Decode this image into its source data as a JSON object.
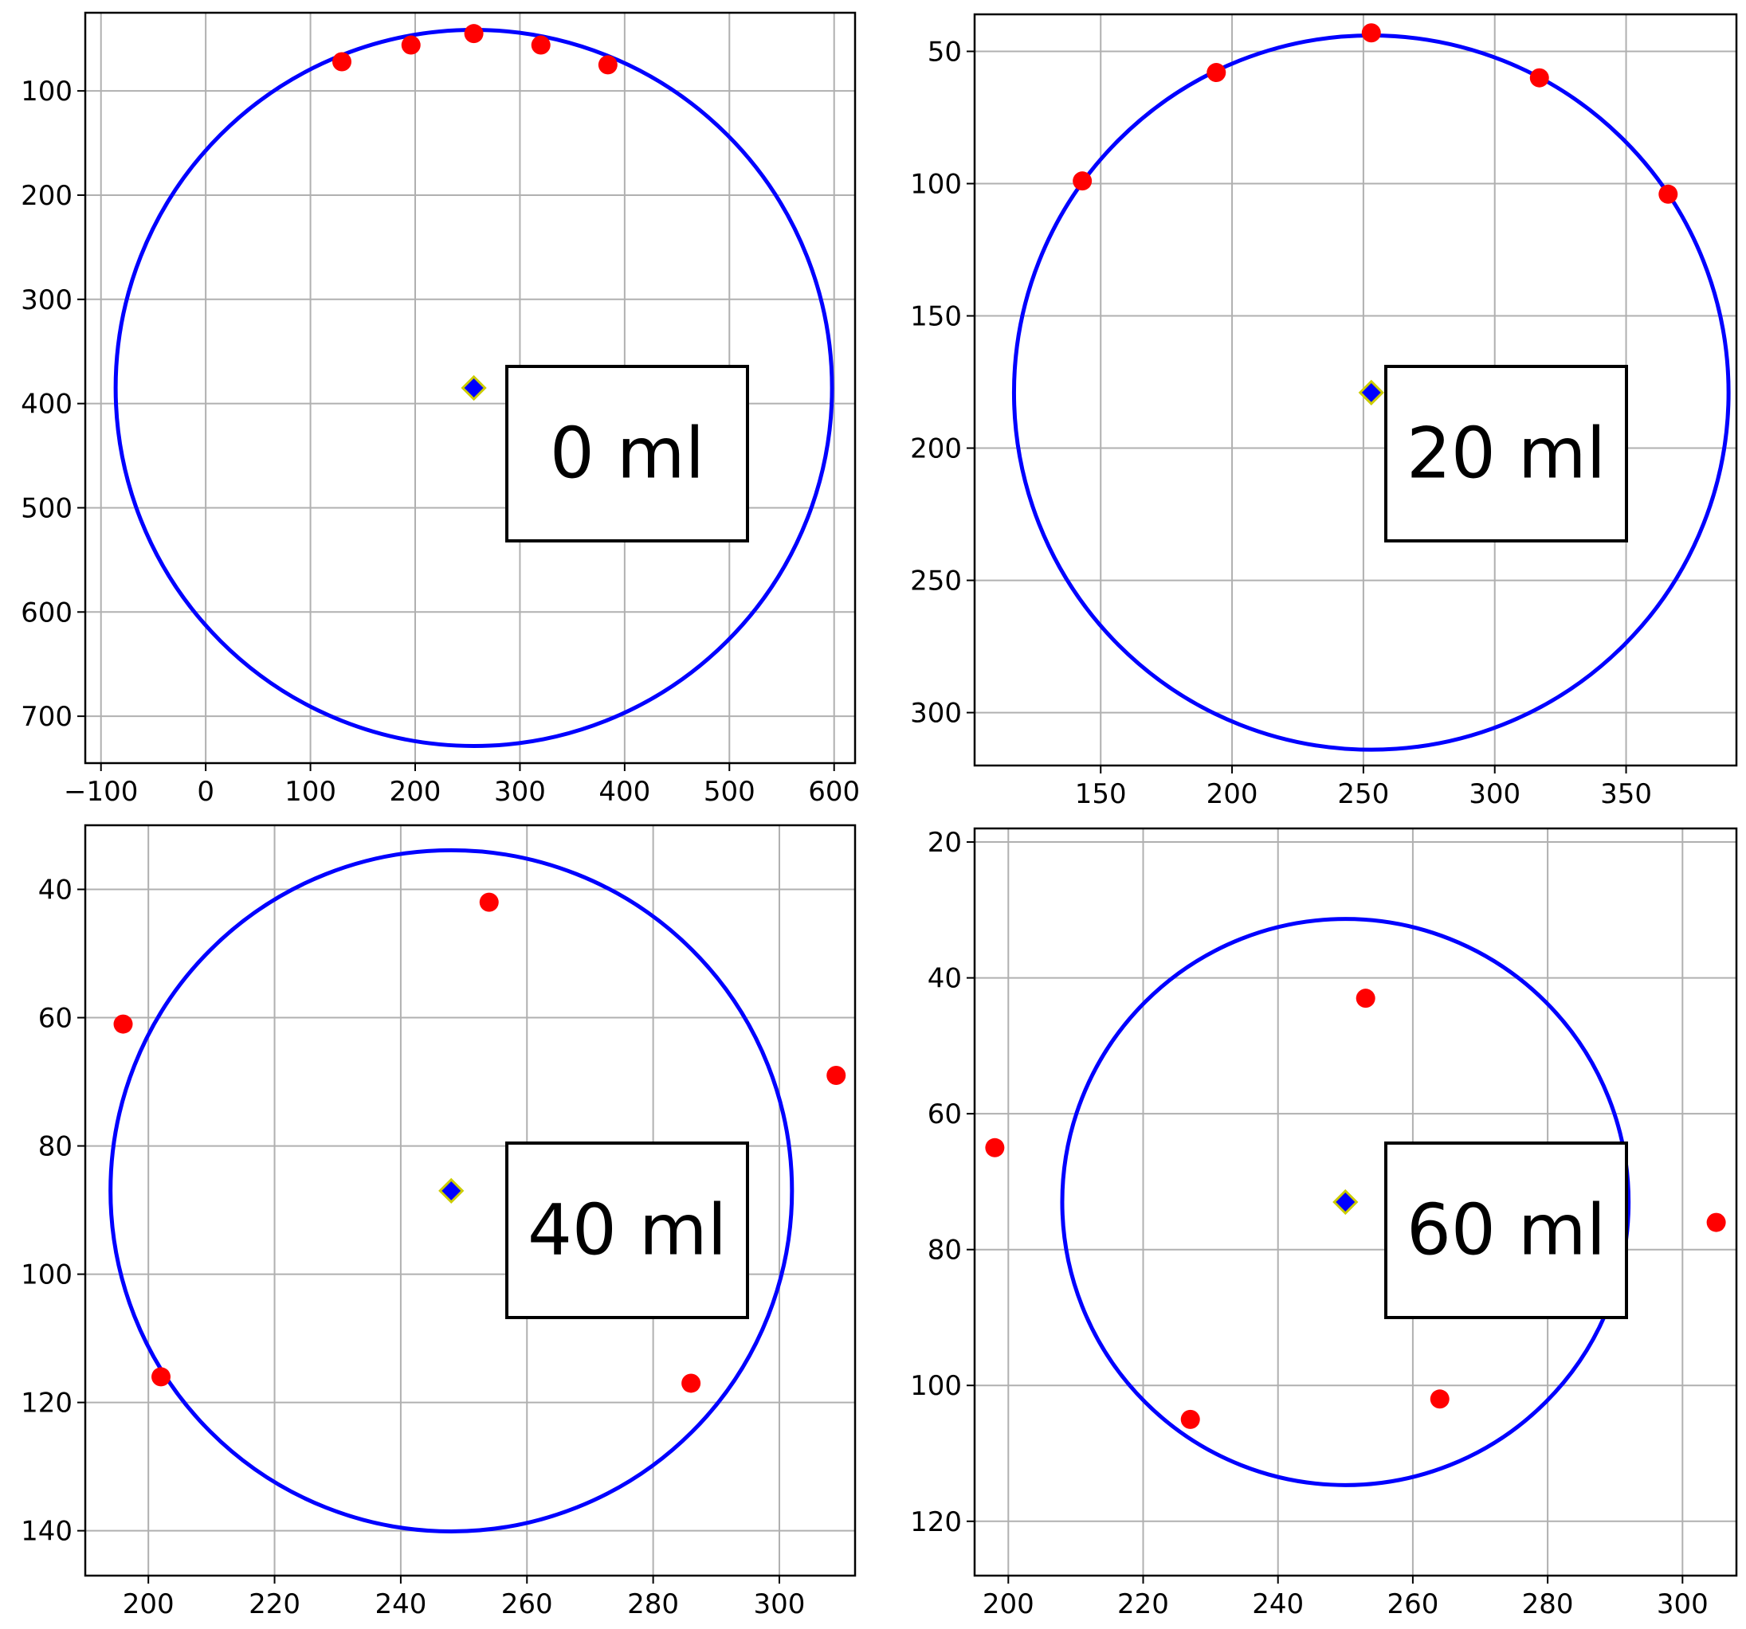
{
  "colors": {
    "circle": "#0000ff",
    "points": "#ff0000",
    "center_fill": "#0000ff",
    "center_edge": "#cccc00",
    "grid": "#b0b0b0",
    "axis": "#000000"
  },
  "chart_data": [
    {
      "type": "scatter",
      "panel_label": "0 ml",
      "xlim": [
        -115,
        620
      ],
      "ylim": [
        745,
        25
      ],
      "x_ticks": [
        "−100",
        "0",
        "100",
        "200",
        "300",
        "400",
        "500",
        "600"
      ],
      "x_tick_values": [
        -100,
        0,
        100,
        200,
        300,
        400,
        500,
        600
      ],
      "y_ticks": [
        "100",
        "200",
        "300",
        "400",
        "500",
        "600",
        "700"
      ],
      "y_tick_values": [
        100,
        200,
        300,
        400,
        500,
        600,
        700
      ],
      "grid": true,
      "points": [
        [
          130,
          72
        ],
        [
          196,
          56
        ],
        [
          256,
          45
        ],
        [
          320,
          56
        ],
        [
          384,
          75
        ]
      ],
      "center": [
        256,
        385
      ],
      "circle": {
        "cx": 256,
        "cy": 385,
        "r": 342
      }
    },
    {
      "type": "scatter",
      "panel_label": "20 ml",
      "xlim": [
        102,
        392
      ],
      "ylim": [
        320,
        36
      ],
      "x_ticks": [
        "150",
        "200",
        "250",
        "300",
        "350"
      ],
      "x_tick_values": [
        150,
        200,
        250,
        300,
        350
      ],
      "y_ticks": [
        "50",
        "100",
        "150",
        "200",
        "250",
        "300"
      ],
      "y_tick_values": [
        50,
        100,
        150,
        200,
        250,
        300
      ],
      "grid": true,
      "points": [
        [
          143,
          99
        ],
        [
          194,
          58
        ],
        [
          253,
          43
        ],
        [
          317,
          60
        ],
        [
          366,
          104
        ]
      ],
      "center": [
        253,
        179
      ],
      "circle": {
        "cx": 253,
        "cy": 179,
        "r": 136
      }
    },
    {
      "type": "scatter",
      "panel_label": "40 ml",
      "xlim": [
        190,
        312
      ],
      "ylim": [
        147,
        30
      ],
      "x_ticks": [
        "200",
        "220",
        "240",
        "260",
        "280",
        "300"
      ],
      "x_tick_values": [
        200,
        220,
        240,
        260,
        280,
        300
      ],
      "y_ticks": [
        "40",
        "60",
        "80",
        "100",
        "120",
        "140"
      ],
      "y_tick_values": [
        40,
        60,
        80,
        100,
        120,
        140
      ],
      "grid": true,
      "points": [
        [
          196,
          61
        ],
        [
          202,
          116
        ],
        [
          254,
          42
        ],
        [
          286,
          117
        ],
        [
          309,
          69
        ]
      ],
      "center": [
        248,
        87
      ],
      "circle": {
        "cx": 248,
        "cy": 87,
        "r": 54
      }
    },
    {
      "type": "scatter",
      "panel_label": "60 ml",
      "xlim": [
        195,
        308
      ],
      "ylim": [
        128,
        18
      ],
      "x_ticks": [
        "200",
        "220",
        "240",
        "260",
        "280",
        "300"
      ],
      "x_tick_values": [
        200,
        220,
        240,
        260,
        280,
        300
      ],
      "y_ticks": [
        "20",
        "40",
        "60",
        "80",
        "100",
        "120"
      ],
      "y_tick_values": [
        20,
        40,
        60,
        80,
        100,
        120
      ],
      "grid": true,
      "points": [
        [
          198,
          65
        ],
        [
          227,
          105
        ],
        [
          253,
          43
        ],
        [
          264,
          102
        ],
        [
          305,
          76
        ]
      ],
      "center": [
        250,
        73
      ],
      "circle": {
        "cx": 250,
        "cy": 73,
        "r": 42
      }
    }
  ]
}
